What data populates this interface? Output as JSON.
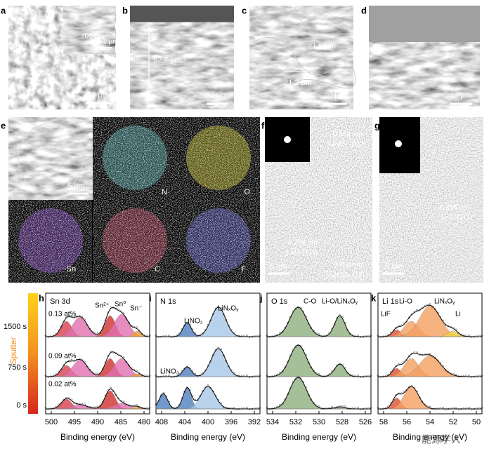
{
  "panels": {
    "a": {
      "label": "a",
      "inset_scale": "200 nm",
      "inset_bar": "1 μm",
      "scale": "10 μm"
    },
    "b": {
      "label": "b",
      "thickness": "52.7 μm",
      "scale": "20 μm"
    },
    "c": {
      "label": "c",
      "width_1": "21.8 μm",
      "width_2": "21.2 μm",
      "scale": "20 μm"
    },
    "d": {
      "label": "d",
      "scale": "20 μm"
    },
    "e": {
      "label": "e",
      "scale": "5 μm",
      "maps": [
        "N",
        "O",
        "Sn",
        "C",
        "F"
      ]
    },
    "f": {
      "label": "f",
      "spacing_1": "0.353 nm",
      "plane_1": "LiNO₃ (012)",
      "spacing_2": "0.266 nm",
      "plane_2": "Li₂O (111)",
      "spacing_3": "0.306 nm",
      "plane_3": "Li₃N₂O₃ (111)",
      "scale": "5 nm"
    },
    "g": {
      "label": "g",
      "spacing_1": "0.266 nm",
      "plane_1": "Li₂O (111)",
      "scale": "5 nm"
    },
    "sputter": {
      "label": "Sputter",
      "times": [
        "1500 s",
        "750 s",
        "0 s"
      ]
    },
    "h": {
      "label": "h",
      "title": "Sn 3d",
      "annotations": [
        "0.13 at%",
        "0.09 at%",
        "0.02 at%",
        "Sn²⁺",
        "Sn⁰",
        "Sn⁻"
      ],
      "xticks": [
        "500",
        "495",
        "490",
        "485",
        "480"
      ],
      "xlabel": "Binding energy (eV)"
    },
    "i": {
      "label": "i",
      "title": "N 1s",
      "annotations": [
        "LiNO₂",
        "LiNₓOᵧ",
        "LiNO₃"
      ],
      "xticks": [
        "408",
        "404",
        "400",
        "396",
        "392"
      ],
      "xlabel": "Binding energy (eV)"
    },
    "j": {
      "label": "j",
      "title": "O 1s",
      "annotations": [
        "C-O",
        "Li-O/LiNₓOᵧ"
      ],
      "xticks": [
        "534",
        "532",
        "530",
        "528",
        "526"
      ],
      "xlabel": "Binding energy (eV)"
    },
    "k": {
      "label": "k",
      "title": "Li 1s",
      "annotations": [
        "Li-O",
        "LiNₓOᵧ",
        "LiF",
        "Li"
      ],
      "xticks": [
        "58",
        "56",
        "54",
        "52",
        "50"
      ],
      "xlabel": "Binding energy (eV)"
    }
  },
  "watermark": "能源学人"
}
